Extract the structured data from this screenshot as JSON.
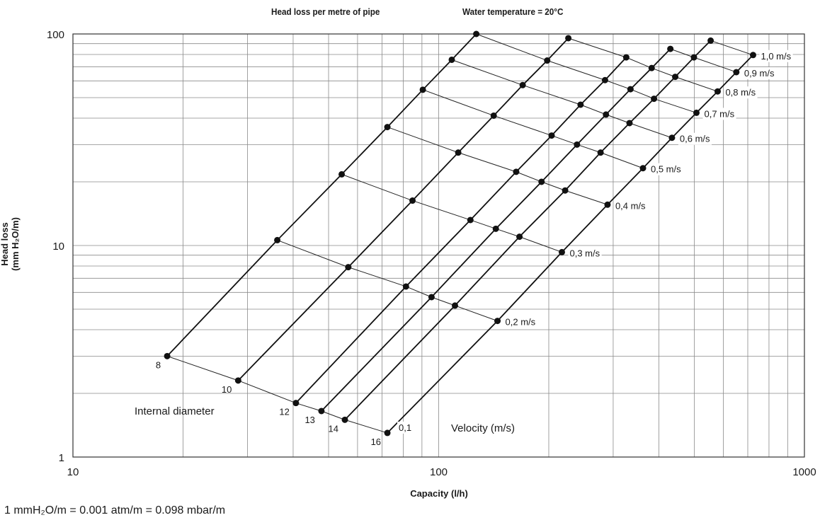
{
  "header": {
    "title": "Head loss per metre of pipe",
    "condition": "Water temperature = 20°C"
  },
  "chart_data": {
    "type": "line",
    "xlabel": "Capacity (l/h)",
    "ylabel": "Head loss\n(mm H₂O/m)",
    "xscale": "log",
    "yscale": "log",
    "xlim": [
      10,
      1000
    ],
    "ylim": [
      1,
      100
    ],
    "x_ticks": [
      "10",
      "100",
      "1000"
    ],
    "y_ticks": [
      "1",
      "10",
      "100"
    ],
    "grid": true,
    "series_label": "Internal diameter",
    "velocity_label": "Velocity (m/s)",
    "series": [
      {
        "name": "8",
        "points": [
          [
            18.1,
            3.0
          ],
          [
            36.2,
            10.6
          ],
          [
            54.3,
            21.7
          ],
          [
            72.4,
            36.3
          ],
          [
            90.5,
            54.5
          ],
          [
            108.6,
            75.5
          ],
          [
            126.7,
            100
          ]
        ]
      },
      {
        "name": "10",
        "points": [
          [
            28.3,
            2.3
          ],
          [
            56.6,
            7.9
          ],
          [
            84.8,
            16.3
          ],
          [
            113.1,
            27.5
          ],
          [
            141.4,
            41.1
          ],
          [
            169.7,
            57.3
          ],
          [
            198.0,
            74.9
          ],
          [
            226.2,
            95.5
          ]
        ]
      },
      {
        "name": "12",
        "points": [
          [
            40.7,
            1.8
          ],
          [
            81.4,
            6.4
          ],
          [
            122.1,
            13.2
          ],
          [
            162.9,
            22.3
          ],
          [
            203.6,
            33.1
          ],
          [
            244.3,
            46.3
          ],
          [
            285.0,
            60.5
          ],
          [
            325.7,
            77.5
          ]
        ]
      },
      {
        "name": "13",
        "points": [
          [
            47.8,
            1.65
          ],
          [
            95.6,
            5.7
          ],
          [
            143.3,
            12.0
          ],
          [
            191.1,
            20.0
          ],
          [
            238.9,
            30.0
          ],
          [
            286.7,
            41.6
          ],
          [
            334.5,
            54.8
          ],
          [
            382.2,
            69.0
          ],
          [
            430.0,
            85.0
          ]
        ]
      },
      {
        "name": "14",
        "points": [
          [
            55.4,
            1.5
          ],
          [
            110.8,
            5.2
          ],
          [
            166.3,
            11.0
          ],
          [
            221.7,
            18.2
          ],
          [
            277.1,
            27.5
          ],
          [
            332.5,
            37.9
          ],
          [
            387.9,
            49.4
          ],
          [
            443.4,
            62.7
          ],
          [
            498.8,
            77.5
          ],
          [
            554.2,
            93.0
          ]
        ]
      },
      {
        "name": "16",
        "points": [
          [
            72.4,
            1.3
          ],
          [
            144.8,
            4.4
          ],
          [
            217.2,
            9.3
          ],
          [
            289.5,
            15.6
          ],
          [
            361.9,
            23.2
          ],
          [
            434.3,
            32.3
          ],
          [
            506.7,
            42.4
          ],
          [
            579.1,
            53.5
          ],
          [
            651.4,
            66.0
          ],
          [
            723.8,
            79.5
          ]
        ]
      }
    ],
    "velocities": [
      "0,1",
      "0,2 m/s",
      "0,3 m/s",
      "0,4 m/s",
      "0,5 m/s",
      "0,6 m/s",
      "0,7 m/s",
      "0,8 m/s",
      "0,9 m/s",
      "1,0 m/s"
    ]
  },
  "footnote": "1 mmH₂O/m = 0.001 atm/m = 0.098 mbar/m"
}
